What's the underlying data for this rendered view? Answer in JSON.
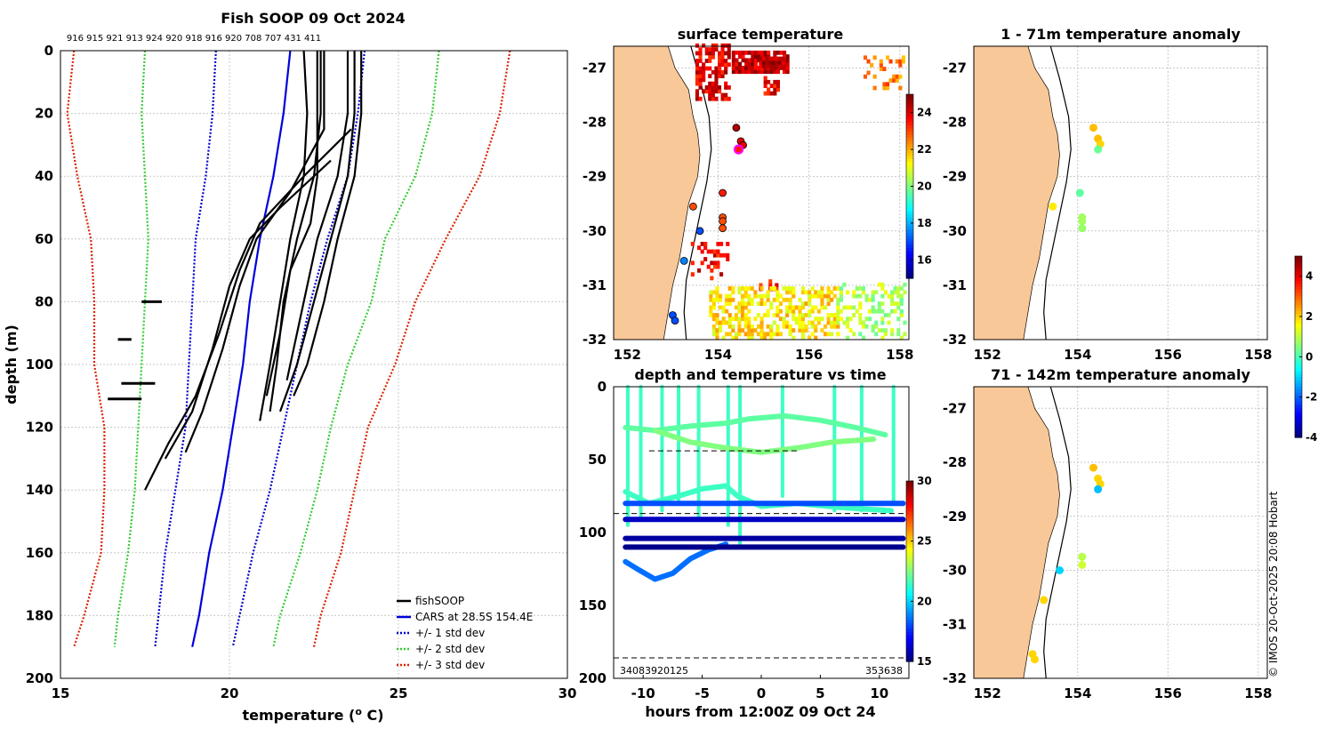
{
  "page": {
    "copyright": "© IMOS 20-Oct-2025 20:08 Hobart"
  },
  "colors": {
    "land": "#f9c898",
    "fishsoop": "#000000",
    "cars": "#0000dd",
    "std1": "#0000cc",
    "std2": "#33cc33",
    "std3": "#dd2200",
    "grid": "#c8c8c8"
  },
  "chart_data": [
    {
      "id": "profile",
      "type": "line",
      "title": "Fish SOOP 09 Oct 2024",
      "xlabel": "temperature (",
      "xlabel_sup": "o",
      "xlabel_end": " C)",
      "ylabel": "depth (m)",
      "xlim": [
        15,
        30
      ],
      "ylim": [
        200,
        0
      ],
      "xticks": [
        "15",
        "20",
        "25",
        "30"
      ],
      "yticks": [
        "0",
        "20",
        "40",
        "60",
        "80",
        "100",
        "120",
        "140",
        "160",
        "180",
        "200"
      ],
      "top_labels": "916 915 921 913 924 920 918 916 920 708 707 431 411",
      "legend": [
        "fishSOOP",
        "CARS at 28.5S 154.4E",
        "+/- 1 std dev",
        "+/- 2 std dev",
        "+/- 3 std dev"
      ],
      "cars": {
        "depth": [
          0,
          10,
          20,
          40,
          60,
          80,
          100,
          120,
          140,
          160,
          180,
          190
        ],
        "temp": [
          21.8,
          21.7,
          21.6,
          21.3,
          20.9,
          20.6,
          20.4,
          20.1,
          19.8,
          19.4,
          19.1,
          18.9
        ]
      },
      "std1_minus": {
        "depth": [
          0,
          20,
          40,
          60,
          80,
          100,
          120,
          140,
          160,
          180,
          190
        ],
        "temp": [
          19.6,
          19.5,
          19.3,
          19.0,
          18.9,
          18.8,
          18.7,
          18.4,
          18.1,
          17.9,
          17.8
        ]
      },
      "std1_plus": {
        "depth": [
          0,
          20,
          40,
          60,
          80,
          100,
          120,
          140,
          160,
          180,
          190
        ],
        "temp": [
          24.0,
          23.8,
          23.5,
          22.9,
          22.4,
          22.0,
          21.6,
          21.2,
          20.7,
          20.3,
          20.1
        ]
      },
      "std2_minus": {
        "depth": [
          0,
          20,
          40,
          60,
          80,
          100,
          120,
          140,
          160,
          180,
          190
        ],
        "temp": [
          17.5,
          17.4,
          17.5,
          17.6,
          17.5,
          17.4,
          17.3,
          17.2,
          17.0,
          16.7,
          16.6
        ]
      },
      "std2_plus": {
        "depth": [
          0,
          20,
          40,
          60,
          80,
          100,
          120,
          140,
          160,
          180,
          190
        ],
        "temp": [
          26.2,
          26.0,
          25.5,
          24.6,
          24.2,
          23.5,
          23.0,
          22.6,
          22.1,
          21.5,
          21.3
        ]
      },
      "std3_minus": {
        "depth": [
          0,
          20,
          40,
          60,
          80,
          100,
          120,
          140,
          160,
          180,
          190
        ],
        "temp": [
          15.4,
          15.2,
          15.5,
          15.9,
          16.0,
          16.0,
          16.3,
          16.3,
          16.2,
          15.7,
          15.4
        ]
      },
      "std3_plus": {
        "depth": [
          0,
          20,
          40,
          60,
          80,
          100,
          120,
          140,
          160,
          180,
          190
        ],
        "temp": [
          28.3,
          28.0,
          27.4,
          26.4,
          25.5,
          24.9,
          24.1,
          23.7,
          23.3,
          22.7,
          22.5
        ]
      },
      "fishsoop_profiles": [
        {
          "depth": [
            0,
            20,
            40,
            60,
            80,
            100,
            110
          ],
          "temp": [
            23.9,
            23.9,
            23.7,
            23.2,
            22.8,
            22.3,
            21.9
          ]
        },
        {
          "depth": [
            0,
            20,
            40,
            60,
            80,
            100,
            115
          ],
          "temp": [
            23.7,
            23.7,
            23.5,
            23.0,
            22.5,
            22.0,
            21.5
          ]
        },
        {
          "depth": [
            0,
            20,
            40,
            60,
            80,
            105
          ],
          "temp": [
            23.5,
            23.5,
            23.2,
            22.6,
            22.2,
            21.7
          ]
        },
        {
          "depth": [
            0,
            20,
            40,
            55,
            70,
            90,
            110
          ],
          "temp": [
            22.6,
            22.6,
            22.6,
            22.4,
            21.8,
            21.5,
            21.1
          ]
        },
        {
          "depth": [
            0,
            20,
            40,
            60,
            80,
            100,
            118
          ],
          "temp": [
            22.2,
            22.3,
            22.2,
            21.8,
            21.5,
            21.2,
            20.9
          ]
        },
        {
          "depth": [
            0,
            20,
            40,
            60,
            80,
            100,
            115
          ],
          "temp": [
            22.7,
            22.7,
            22.5,
            22.0,
            21.6,
            21.4,
            21.2
          ]
        },
        {
          "depth": [
            0,
            25,
            45,
            60,
            75,
            95,
            115,
            128
          ],
          "temp": [
            22.8,
            22.8,
            21.8,
            20.8,
            20.3,
            19.8,
            19.2,
            18.7
          ]
        },
        {
          "depth": [
            25,
            40,
            55,
            70,
            90,
            110,
            125,
            140
          ],
          "temp": [
            23.6,
            22.2,
            20.9,
            20.3,
            19.7,
            19.0,
            18.2,
            17.5
          ]
        },
        {
          "depth": [
            35,
            50,
            60,
            75,
            95,
            115,
            130
          ],
          "temp": [
            23.0,
            21.5,
            20.6,
            20.0,
            19.5,
            18.9,
            18.1
          ]
        }
      ],
      "fishsoop_segments": [
        {
          "depth": [
            80,
            80
          ],
          "temp": [
            17.4,
            18.0
          ]
        },
        {
          "depth": [
            92,
            92
          ],
          "temp": [
            16.7,
            17.1
          ]
        },
        {
          "depth": [
            106,
            106
          ],
          "temp": [
            16.8,
            17.8
          ]
        },
        {
          "depth": [
            111,
            111
          ],
          "temp": [
            16.4,
            17.4
          ]
        }
      ]
    },
    {
      "id": "sst_map",
      "type": "heatmap",
      "title": "surface temperature",
      "xlim": [
        151.7,
        158.2
      ],
      "ylim": [
        -32,
        -26.6
      ],
      "xticks": [
        "152",
        "154",
        "156",
        "158"
      ],
      "yticks": [
        "-27",
        "-28",
        "-29",
        "-30",
        "-31",
        "-32"
      ],
      "colorbar_ticks": [
        "16",
        "18",
        "20",
        "22",
        "24"
      ],
      "colorbar_range": [
        15,
        25
      ],
      "points": [
        {
          "lon": 154.4,
          "lat": -28.1,
          "value": 24.5
        },
        {
          "lon": 154.5,
          "lat": -28.35,
          "value": 24.0
        },
        {
          "lon": 154.55,
          "lat": -28.42,
          "value": 24.0
        },
        {
          "lon": 154.45,
          "lat": -28.5,
          "value": 23.5,
          "highlight": true
        },
        {
          "lon": 154.1,
          "lat": -29.3,
          "value": 23.5
        },
        {
          "lon": 153.45,
          "lat": -29.55,
          "value": 23.0
        },
        {
          "lon": 154.1,
          "lat": -29.75,
          "value": 23.0
        },
        {
          "lon": 154.1,
          "lat": -29.82,
          "value": 23.0
        },
        {
          "lon": 154.1,
          "lat": -29.95,
          "value": 23.0
        },
        {
          "lon": 153.6,
          "lat": -30.0,
          "value": 17.0
        },
        {
          "lon": 153.25,
          "lat": -30.55,
          "value": 17.5
        },
        {
          "lon": 153.0,
          "lat": -31.55,
          "value": 17.0
        },
        {
          "lon": 153.05,
          "lat": -31.65,
          "value": 17.0
        }
      ]
    },
    {
      "id": "depth_time",
      "type": "scatter",
      "title": "depth and temperature vs time",
      "xlabel": "hours from 12:00Z 09 Oct 24",
      "xlim": [
        -12.5,
        12.5
      ],
      "ylim": [
        200,
        0
      ],
      "xticks": [
        "-10",
        "-5",
        "0",
        "5",
        "10"
      ],
      "yticks": [
        "0",
        "50",
        "100",
        "150",
        "200"
      ],
      "colorbar_ticks": [
        "15",
        "20",
        "25",
        "30"
      ],
      "colorbar_range": [
        15,
        30
      ],
      "dashed_depths": [
        44,
        87,
        186
      ],
      "bottom_left_label": "34083920125",
      "bottom_right_label": "353638",
      "series": [
        {
          "name": "surface",
          "hours": [
            -11.5,
            -9,
            -6,
            -3,
            -1,
            2,
            5,
            8,
            10.5
          ],
          "depth": [
            28,
            30,
            27,
            25,
            22,
            20,
            23,
            28,
            33
          ],
          "value": 22
        },
        {
          "name": "arc",
          "hours": [
            -9,
            -6,
            -3,
            0,
            3,
            6,
            9.5
          ],
          "depth": [
            30,
            38,
            42,
            45,
            42,
            38,
            36
          ],
          "value": 22.5
        },
        {
          "name": "mid",
          "hours": [
            -11.5,
            -9.5,
            -7,
            -5,
            -3,
            -2,
            0,
            3,
            7,
            11
          ],
          "depth": [
            72,
            80,
            75,
            70,
            68,
            75,
            82,
            80,
            83,
            85
          ],
          "value": 21.5
        },
        {
          "name": "deep_varying",
          "hours": [
            -11.5,
            -10.5,
            -9,
            -7.5,
            -6,
            -4.5,
            -3
          ],
          "depth": [
            120,
            125,
            132,
            128,
            118,
            112,
            108
          ],
          "value": 18.5
        },
        {
          "name": "line80",
          "hours": [
            -11.5,
            12
          ],
          "depth": [
            80,
            80
          ],
          "value": 18.0
        },
        {
          "name": "line90",
          "hours": [
            -11.5,
            12
          ],
          "depth": [
            91,
            91
          ],
          "value": 16.0
        },
        {
          "name": "line104",
          "hours": [
            -11.5,
            12
          ],
          "depth": [
            104,
            104
          ],
          "value": 15.5
        },
        {
          "name": "line110",
          "hours": [
            -11.5,
            12
          ],
          "depth": [
            110,
            110
          ],
          "value": 15.2
        }
      ]
    },
    {
      "id": "anom_shallow",
      "type": "scatter",
      "title": "1 - 71m temperature anomaly",
      "xlim": [
        151.7,
        158.2
      ],
      "ylim": [
        -32,
        -26.6
      ],
      "xticks": [
        "152",
        "154",
        "156",
        "158"
      ],
      "yticks": [
        "-27",
        "-28",
        "-29",
        "-30",
        "-31",
        "-32"
      ],
      "colorbar_ticks": [
        "-4",
        "-2",
        "0",
        "2",
        "4"
      ],
      "colorbar_range": [
        -4,
        5
      ],
      "points": [
        {
          "lon": 154.35,
          "lat": -28.1,
          "value": 2.2
        },
        {
          "lon": 154.45,
          "lat": -28.3,
          "value": 2.2
        },
        {
          "lon": 154.5,
          "lat": -28.4,
          "value": 2.0
        },
        {
          "lon": 154.45,
          "lat": -28.5,
          "value": 0.3
        },
        {
          "lon": 154.05,
          "lat": -29.3,
          "value": 0.2
        },
        {
          "lon": 153.45,
          "lat": -29.55,
          "value": 1.8
        },
        {
          "lon": 154.1,
          "lat": -29.75,
          "value": 0.8
        },
        {
          "lon": 154.1,
          "lat": -29.82,
          "value": 0.8
        },
        {
          "lon": 154.1,
          "lat": -29.95,
          "value": 0.7
        }
      ]
    },
    {
      "id": "anom_deep",
      "type": "scatter",
      "title": "71 - 142m temperature anomaly",
      "xlim": [
        151.7,
        158.2
      ],
      "ylim": [
        -32,
        -26.6
      ],
      "xticks": [
        "152",
        "154",
        "156",
        "158"
      ],
      "yticks": [
        "-27",
        "-28",
        "-29",
        "-30",
        "-31",
        "-32"
      ],
      "points": [
        {
          "lon": 154.35,
          "lat": -28.1,
          "value": 2.2
        },
        {
          "lon": 154.45,
          "lat": -28.3,
          "value": 2.0
        },
        {
          "lon": 154.5,
          "lat": -28.4,
          "value": 2.0
        },
        {
          "lon": 154.45,
          "lat": -28.5,
          "value": -1.2
        },
        {
          "lon": 154.1,
          "lat": -29.75,
          "value": 1.0
        },
        {
          "lon": 154.1,
          "lat": -29.9,
          "value": 1.2
        },
        {
          "lon": 153.6,
          "lat": -30.0,
          "value": -1.0
        },
        {
          "lon": 153.25,
          "lat": -30.55,
          "value": 2.0
        },
        {
          "lon": 153.0,
          "lat": -31.55,
          "value": 2.0
        },
        {
          "lon": 153.05,
          "lat": -31.65,
          "value": 2.0
        }
      ]
    }
  ]
}
